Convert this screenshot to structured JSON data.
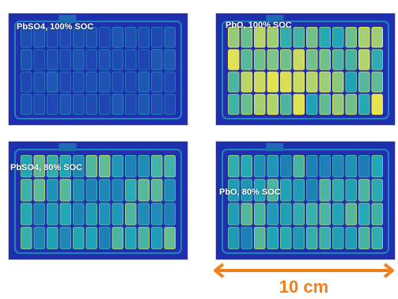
{
  "panels": [
    {
      "id": "p1",
      "label": "PbSO4, 100% SOC",
      "intensity": 0.15
    },
    {
      "id": "p2",
      "label": "PbO, 100% SOC",
      "intensity": 0.85
    },
    {
      "id": "p3",
      "label": "PbSO4, 80% SOC",
      "intensity": 0.6
    },
    {
      "id": "p4",
      "label": "PbO, 80% SOC",
      "intensity": 0.55
    }
  ],
  "scale_bar": {
    "label": "10 cm"
  },
  "colors": {
    "background": "#ffffff",
    "map_low": "#1f2fb0",
    "map_mid": "#1fa8b8",
    "map_high": "#f2e84a",
    "scale_bar": "#f0801c"
  }
}
